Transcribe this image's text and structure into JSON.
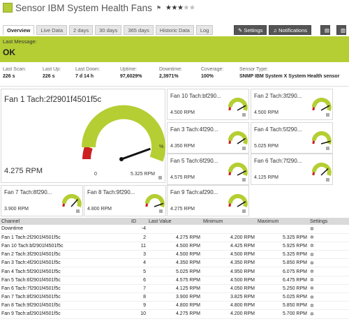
{
  "header": {
    "title": "Sensor IBM System Health Fans",
    "stars_on": 3,
    "stars_total": 5,
    "status_color": "#b4cc38"
  },
  "tabs": [
    {
      "label": "Overview",
      "active": true
    },
    {
      "label": "Live Data"
    },
    {
      "label": "2 days"
    },
    {
      "label": "30 days"
    },
    {
      "label": "365 days"
    },
    {
      "label": "Historic Data"
    },
    {
      "label": "Log"
    }
  ],
  "actions": {
    "settings": "Settings",
    "notifications": "Notifications"
  },
  "message": {
    "label": "Last Message:",
    "value": "OK",
    "color": "#b5ce33"
  },
  "stats": {
    "last_scan": {
      "k": "Last Scan:",
      "v": "226 s"
    },
    "last_up": {
      "k": "Last Up:",
      "v": "226 s"
    },
    "last_down": {
      "k": "Last Down:",
      "v": "7 d 14 h"
    },
    "uptime": {
      "k": "Uptime:",
      "v": "97,6029%"
    },
    "downtime": {
      "k": "Downtime:",
      "v": "2,3971%"
    },
    "coverage": {
      "k": "Coverage:",
      "v": "100%"
    },
    "sensor_type": {
      "k": "Sensor Type:",
      "v": "SNMP IBM System X System Health sensor"
    }
  },
  "big_gauge": {
    "title": "Fan 1 Tach:2f2901f4501f5c",
    "value": "4.275 RPM",
    "min_label": "0",
    "max_label": "5.325 RPM",
    "fraction": 0.8,
    "unit_mark": "%"
  },
  "small_gauges": [
    {
      "title": "Fan 10 Tach:bf290...",
      "value": "4.500 RPM",
      "fraction": 0.76
    },
    {
      "title": "Fan 2 Tach:3f290...",
      "value": "4.500 RPM",
      "fraction": 0.76
    },
    {
      "title": "Fan 3 Tach:4f290...",
      "value": "4.350 RPM",
      "fraction": 0.74
    },
    {
      "title": "Fan 4 Tach:5f290...",
      "value": "5.025 RPM",
      "fraction": 0.82
    },
    {
      "title": "Fan 5 Tach:6f290...",
      "value": "4.575 RPM",
      "fraction": 0.77
    },
    {
      "title": "Fan 6 Tach:7f290...",
      "value": "4.125 RPM",
      "fraction": 0.7
    },
    {
      "title": "Fan 7 Tach:8f290...",
      "value": "3.900 RPM",
      "fraction": 0.68
    },
    {
      "title": "Fan 8 Tach:9f290...",
      "value": "4.800 RPM",
      "fraction": 0.8
    },
    {
      "title": "Fan 9 Tach:af290...",
      "value": "4.275 RPM",
      "fraction": 0.75
    }
  ],
  "table": {
    "headers": [
      "Channel",
      "ID",
      "Last Value",
      "Minimum",
      "Maximum",
      "Settings"
    ],
    "rows": [
      [
        "Downtime",
        "-4",
        "",
        "",
        ""
      ],
      [
        "Fan 1 Tach:2f2901f4501f5c",
        "2",
        "4.275 RPM",
        "4.200 RPM",
        "5.325 RPM"
      ],
      [
        "Fan 10 Tach:bf2901f4501f5c",
        "11",
        "4.500 RPM",
        "4.425 RPM",
        "5.925 RPM"
      ],
      [
        "Fan 2 Tach:3f2901f4501f5c",
        "3",
        "4.500 RPM",
        "4.500 RPM",
        "5.325 RPM"
      ],
      [
        "Fan 3 Tach:4f2901f4501f5c",
        "4",
        "4.350 RPM",
        "4.350 RPM",
        "5.850 RPM"
      ],
      [
        "Fan 4 Tach:5f2901f4501f5c",
        "5",
        "5.025 RPM",
        "4.950 RPM",
        "6.075 RPM"
      ],
      [
        "Fan 5 Tach:6f2901f4501f5c",
        "6",
        "4.575 RPM",
        "4.500 RPM",
        "6.475 RPM"
      ],
      [
        "Fan 6 Tach:7f2901f4501f5c",
        "7",
        "4.125 RPM",
        "4.050 RPM",
        "5.250 RPM"
      ],
      [
        "Fan 7 Tach:8f2901f4501f5c",
        "8",
        "3.900 RPM",
        "3.825 RPM",
        "5.025 RPM"
      ],
      [
        "Fan 8 Tach:9f2901f4501f5c",
        "9",
        "4.800 RPM",
        "4.800 RPM",
        "5.850 RPM"
      ],
      [
        "Fan 9 Tach:af2901f4501f5c",
        "10",
        "4.275 RPM",
        "4.200 RPM",
        "5.700 RPM"
      ]
    ]
  }
}
